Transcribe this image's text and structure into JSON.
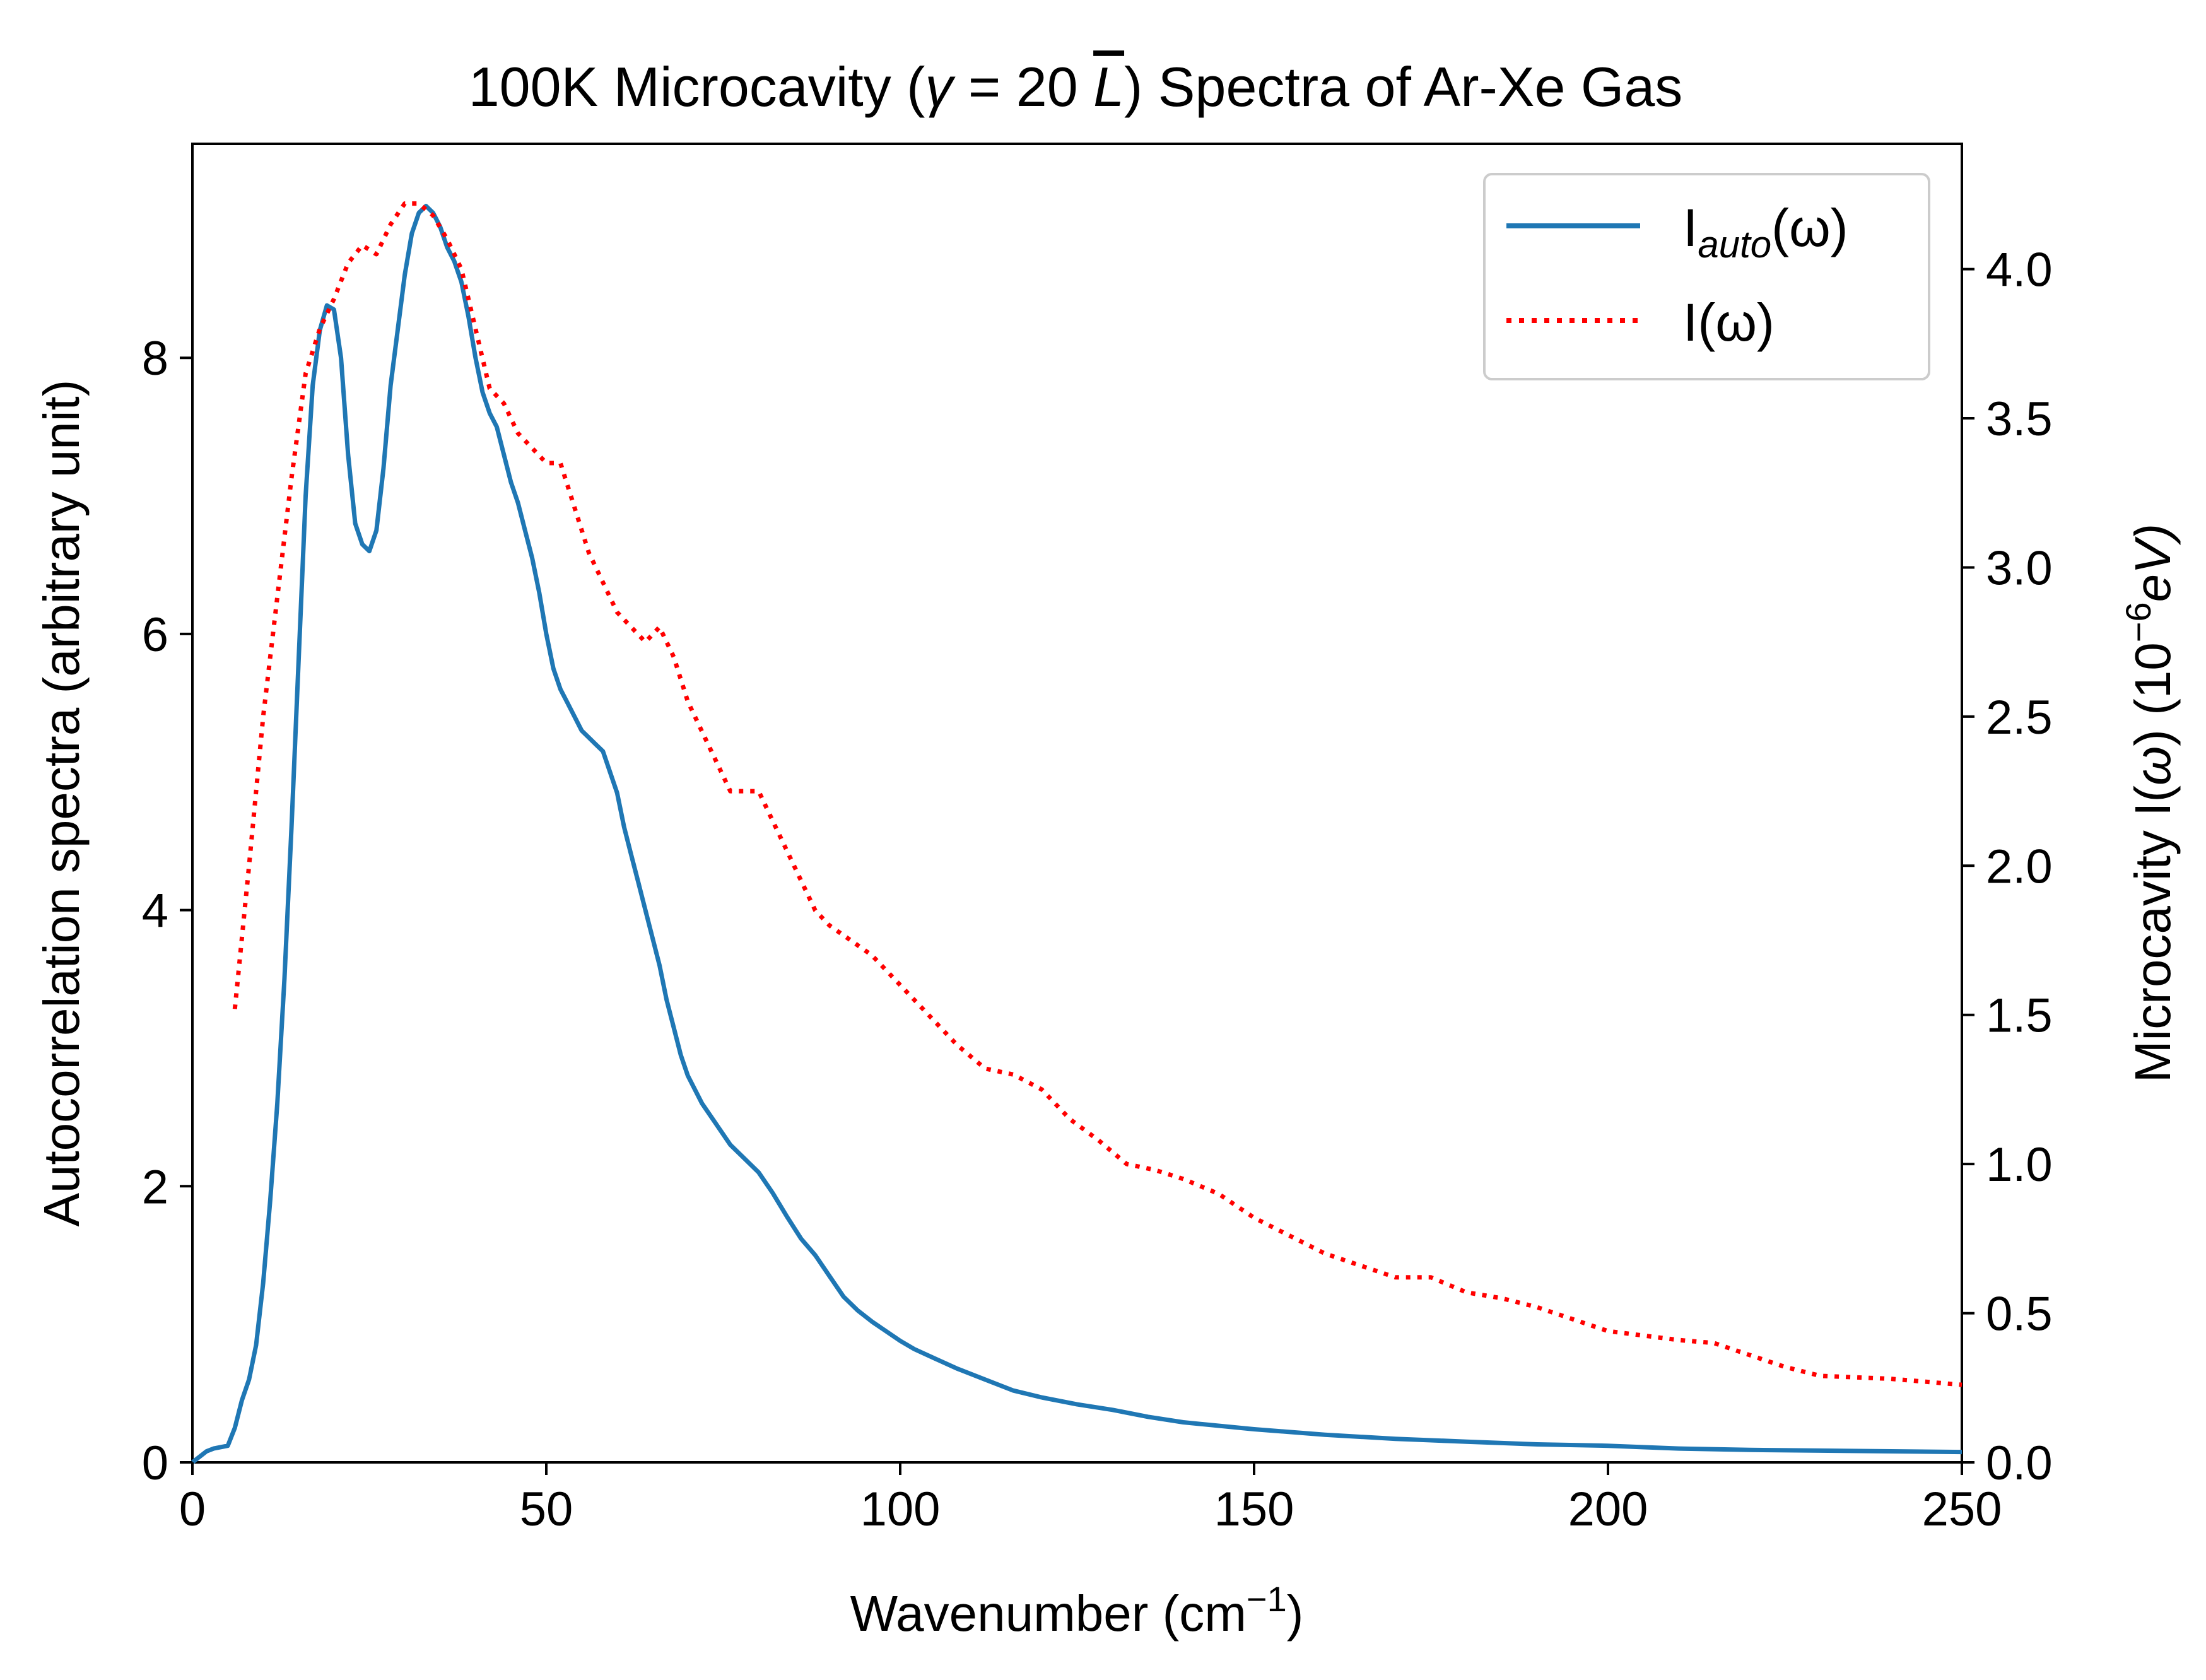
{
  "chart_data": {
    "type": "line",
    "title": {
      "prefix": "100K Microcavity (",
      "gamma": "γ",
      "equals": " = 20 ",
      "lbar": "L",
      "suffix": ") Spectra of Ar-Xe Gas"
    },
    "xlabel": {
      "text": "Wavenumber (cm",
      "sup": "−1",
      "close": ")"
    },
    "ylabel_left": "Autocorrelation spectra (arbitrary unit)",
    "ylabel_right": {
      "text": "Microcavity I(",
      "omega": "ω",
      "mid": ") (10",
      "sup": "−6",
      "unit": "eV)"
    },
    "xlim": [
      0,
      250
    ],
    "ylim_left": [
      0,
      9.55
    ],
    "ylim_right": [
      0,
      4.42
    ],
    "xticks": [
      0,
      50,
      100,
      150,
      200,
      250
    ],
    "yticks_left": [
      0,
      2,
      4,
      6,
      8
    ],
    "yticks_right": [
      0.0,
      0.5,
      1.0,
      1.5,
      2.0,
      2.5,
      3.0,
      3.5,
      4.0
    ],
    "legend": {
      "position": "top-right",
      "entries": [
        {
          "base": "I",
          "sub": "auto",
          "tail": "(ω)"
        },
        {
          "base": "I",
          "sub": "",
          "tail": "(ω)"
        }
      ]
    },
    "series": [
      {
        "name": "I_auto(ω)",
        "axis": "left",
        "color": "#1f77b4",
        "style": "solid",
        "x": [
          0,
          2,
          3,
          5,
          6,
          7,
          8,
          9,
          10,
          11,
          12,
          13,
          14,
          15,
          16,
          17,
          18,
          19,
          20,
          21,
          22,
          23,
          24,
          25,
          26,
          27,
          28,
          29,
          30,
          31,
          32,
          33,
          34,
          35,
          36,
          37,
          38,
          39,
          40,
          41,
          42,
          43,
          44,
          45,
          46,
          47,
          48,
          49,
          50,
          51,
          52,
          53,
          54,
          55,
          56,
          57,
          58,
          59,
          60,
          61,
          62,
          63,
          64,
          65,
          66,
          67,
          68,
          69,
          70,
          72,
          74,
          76,
          78,
          80,
          82,
          84,
          86,
          88,
          90,
          92,
          94,
          96,
          98,
          100,
          102,
          105,
          108,
          112,
          116,
          120,
          125,
          130,
          135,
          140,
          150,
          160,
          170,
          180,
          190,
          200,
          210,
          220,
          230,
          240,
          250
        ],
        "values": [
          0.0,
          0.08,
          0.1,
          0.12,
          0.25,
          0.45,
          0.6,
          0.85,
          1.3,
          1.9,
          2.6,
          3.5,
          4.6,
          5.8,
          7.0,
          7.8,
          8.2,
          8.38,
          8.35,
          8.0,
          7.3,
          6.8,
          6.65,
          6.6,
          6.75,
          7.2,
          7.8,
          8.2,
          8.6,
          8.9,
          9.05,
          9.1,
          9.05,
          8.95,
          8.8,
          8.7,
          8.55,
          8.3,
          8.0,
          7.75,
          7.6,
          7.5,
          7.3,
          7.1,
          6.95,
          6.75,
          6.55,
          6.3,
          6.0,
          5.75,
          5.6,
          5.5,
          5.4,
          5.3,
          5.25,
          5.2,
          5.15,
          5.0,
          4.85,
          4.6,
          4.4,
          4.2,
          4.0,
          3.8,
          3.6,
          3.35,
          3.15,
          2.95,
          2.8,
          2.6,
          2.45,
          2.3,
          2.2,
          2.1,
          1.95,
          1.78,
          1.62,
          1.5,
          1.35,
          1.2,
          1.1,
          1.02,
          0.95,
          0.88,
          0.82,
          0.75,
          0.68,
          0.6,
          0.52,
          0.47,
          0.42,
          0.38,
          0.33,
          0.29,
          0.24,
          0.2,
          0.17,
          0.15,
          0.13,
          0.12,
          0.1,
          0.09,
          0.085,
          0.08,
          0.075
        ]
      },
      {
        "name": "I(ω)",
        "axis": "right",
        "color": "#ff0000",
        "style": "dotted",
        "x": [
          6,
          8,
          10,
          12,
          14,
          16,
          18,
          20,
          22,
          24,
          26,
          28,
          30,
          32,
          34,
          36,
          38,
          40,
          42,
          44,
          46,
          48,
          50,
          52,
          54,
          56,
          58,
          60,
          62,
          64,
          66,
          68,
          70,
          72,
          74,
          76,
          78,
          80,
          82,
          84,
          86,
          88,
          90,
          93,
          96,
          100,
          104,
          108,
          112,
          116,
          120,
          124,
          128,
          132,
          136,
          140,
          145,
          150,
          155,
          160,
          165,
          170,
          175,
          180,
          185,
          190,
          195,
          200,
          210,
          215,
          220,
          225,
          230,
          240,
          250
        ],
        "values": [
          1.52,
          2.0,
          2.5,
          2.9,
          3.3,
          3.65,
          3.8,
          3.9,
          4.02,
          4.08,
          4.05,
          4.15,
          4.22,
          4.22,
          4.18,
          4.1,
          4.0,
          3.8,
          3.6,
          3.55,
          3.45,
          3.4,
          3.35,
          3.35,
          3.2,
          3.05,
          2.95,
          2.85,
          2.8,
          2.75,
          2.8,
          2.7,
          2.55,
          2.45,
          2.35,
          2.25,
          2.25,
          2.25,
          2.15,
          2.05,
          1.95,
          1.85,
          1.8,
          1.75,
          1.7,
          1.6,
          1.5,
          1.4,
          1.32,
          1.3,
          1.25,
          1.15,
          1.08,
          1.0,
          0.98,
          0.95,
          0.9,
          0.82,
          0.76,
          0.7,
          0.66,
          0.62,
          0.62,
          0.57,
          0.55,
          0.52,
          0.48,
          0.44,
          0.41,
          0.4,
          0.36,
          0.32,
          0.29,
          0.28,
          0.26
        ]
      }
    ]
  }
}
